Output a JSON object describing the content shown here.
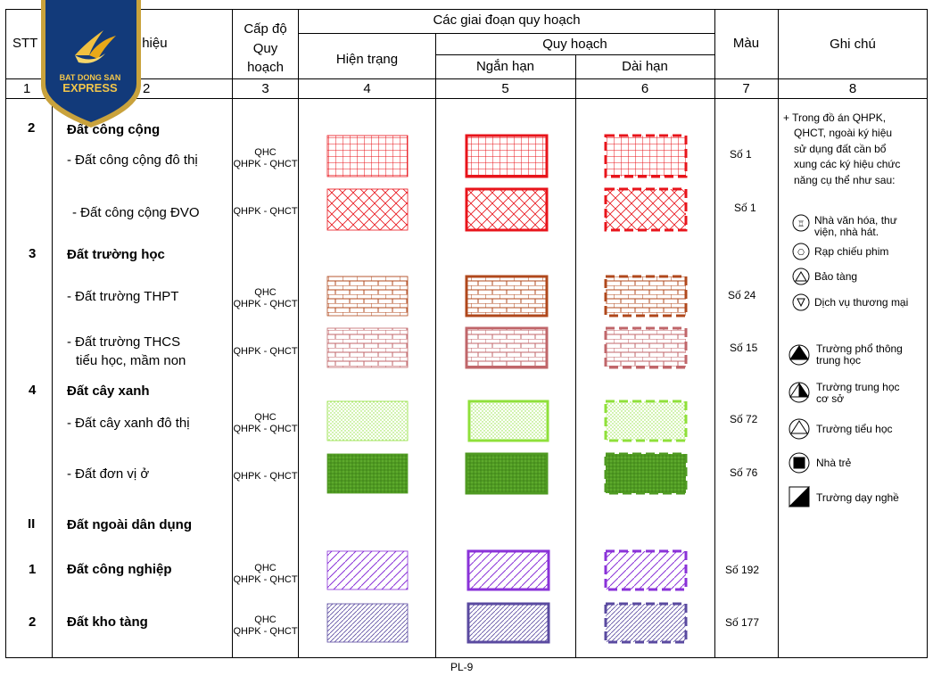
{
  "header": {
    "col1": "STT",
    "col2": "Tên và ký hiệu",
    "col3_line1": "Cấp độ",
    "col3_line2": "Quy",
    "col3_line3": "hoạch",
    "group": "Các giai đoạn quy hoạch",
    "current": "Hiện trạng",
    "plan": "Quy hoạch",
    "short": "Ngắn hạn",
    "long": "Dài hạn",
    "color": "Màu",
    "note": "Ghi chú",
    "nums": [
      "1",
      "2",
      "3",
      "4",
      "5",
      "6",
      "7",
      "8"
    ]
  },
  "rows": [
    {
      "stt": "2",
      "name": "Đất công cộng",
      "bold": true
    },
    {
      "stt": "",
      "name": "- Đất công cộng đô thị",
      "level": [
        "QHC",
        "QHPK - QHCT"
      ],
      "color": "Số 1"
    },
    {
      "stt": "",
      "name": "- Đất công cộng ĐVO",
      "level": [
        "QHPK - QHCT"
      ],
      "color": "Số 1"
    },
    {
      "stt": "3",
      "name": "Đất trường học",
      "bold": true
    },
    {
      "stt": "",
      "name": "- Đất  trường THPT",
      "level": [
        "QHC",
        "QHPK - QHCT"
      ],
      "color": "Số 24"
    },
    {
      "stt": "",
      "name": "- Đất  trường THCS",
      "name2": "tiểu học, mầm non",
      "level": [
        "QHPK - QHCT"
      ],
      "color": "Số 15"
    },
    {
      "stt": "4",
      "name": "Đất cây xanh",
      "bold": true
    },
    {
      "stt": "",
      "name": "- Đất  cây xanh đô thị",
      "level": [
        "QHC",
        "QHPK - QHCT"
      ],
      "color": "Số 72"
    },
    {
      "stt": "",
      "name": "- Đất  đơn vị ở",
      "level": [
        "QHPK - QHCT"
      ],
      "color": "Số 76"
    },
    {
      "stt": "II",
      "name": "Đất ngoài dân dụng",
      "bold": true
    },
    {
      "stt": "1",
      "name": "Đất công nghiệp",
      "bold": true,
      "level": [
        "QHC",
        "QHPK - QHCT"
      ],
      "color": "Số 192"
    },
    {
      "stt": "2",
      "name": "Đất kho tàng",
      "bold": true,
      "level": [
        "QHC",
        "QHPK - QHCT"
      ],
      "color": "Số 177"
    }
  ],
  "note": {
    "intro": [
      "+ Trong đồ án QHPK,",
      "QHCT, ngoài ký hiệu",
      "sử dụng đất cần bổ",
      "xung các ký hiệu chức",
      "năng cụ thể như sau:"
    ],
    "legend": [
      {
        "icon": "theatre-icon",
        "lines": [
          "Nhà văn hóa, thư",
          "viện, nhà hát."
        ]
      },
      {
        "icon": "cinema-icon",
        "lines": [
          "Rạp chiếu phim"
        ]
      },
      {
        "icon": "museum-icon",
        "lines": [
          "Bảo tàng"
        ]
      },
      {
        "icon": "commerce-icon",
        "lines": [
          "Dịch vụ thương mại"
        ]
      },
      {
        "icon": "high-school-icon",
        "lines": [
          "Trường phổ thông",
          "trung học"
        ]
      },
      {
        "icon": "secondary-school-icon",
        "lines": [
          "Trường trung học",
          "cơ sở"
        ]
      },
      {
        "icon": "primary-school-icon",
        "lines": [
          "Trường tiểu học"
        ]
      },
      {
        "icon": "kindergarten-icon",
        "lines": [
          "Nhà trẻ"
        ]
      },
      {
        "icon": "vocational-school-icon",
        "lines": [
          "Trường dạy nghề"
        ]
      }
    ]
  },
  "logo": {
    "line1": "BAT DONG SAN",
    "line2": "EXPRESS"
  },
  "footer": {
    "page": "PL-9"
  },
  "colors": {
    "public": "#e8141b",
    "thpt": "#b0481c",
    "thcs": "#c0666a",
    "green1": "#8fe03a",
    "green2": "#4f9a22",
    "industry": "#8a32d8",
    "warehouse": "#5a4aa0"
  }
}
